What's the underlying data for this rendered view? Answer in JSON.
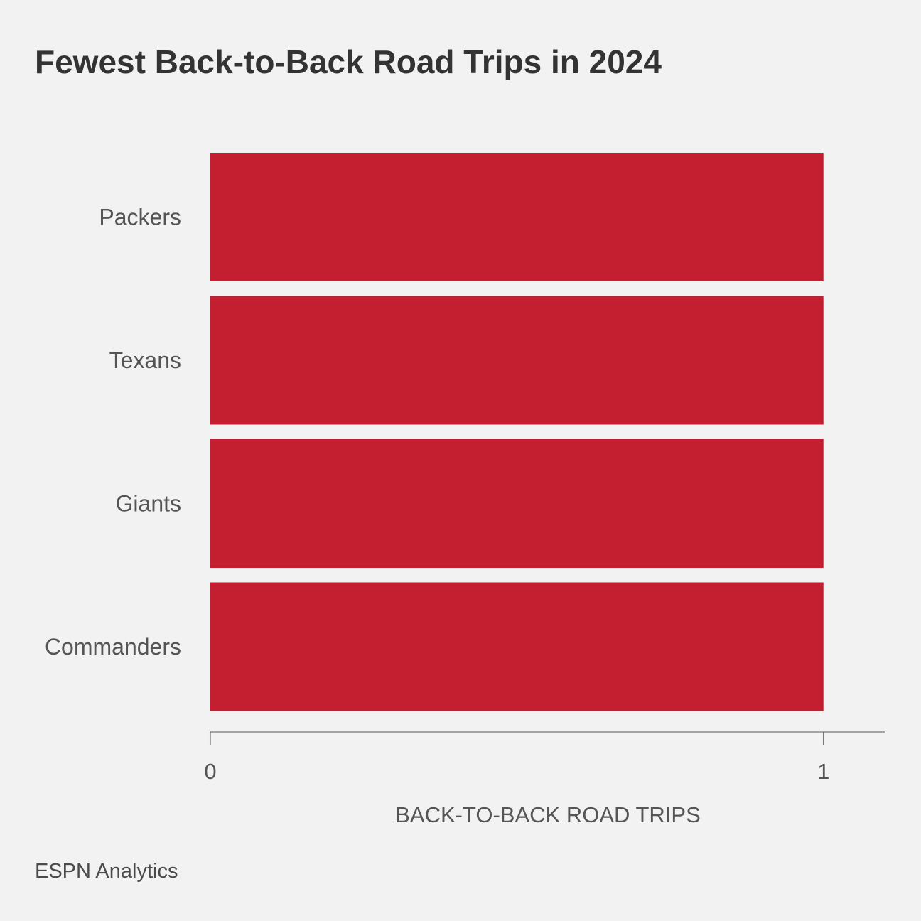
{
  "title": "Fewest Back-to-Back Road Trips in 2024",
  "source": "ESPN Analytics",
  "chart_data": {
    "type": "bar",
    "orientation": "horizontal",
    "categories": [
      "Packers",
      "Texans",
      "Giants",
      "Commanders"
    ],
    "values": [
      1,
      1,
      1,
      1
    ],
    "title": "Fewest Back-to-Back Road Trips in 2024",
    "xlabel": "BACK-TO-BACK ROAD TRIPS",
    "ylabel": "",
    "xlim": [
      0,
      1.1
    ],
    "xticks": [
      0,
      1
    ],
    "xtick_labels": [
      "0",
      "1"
    ],
    "grid": false,
    "bar_color": "#c41e31"
  }
}
